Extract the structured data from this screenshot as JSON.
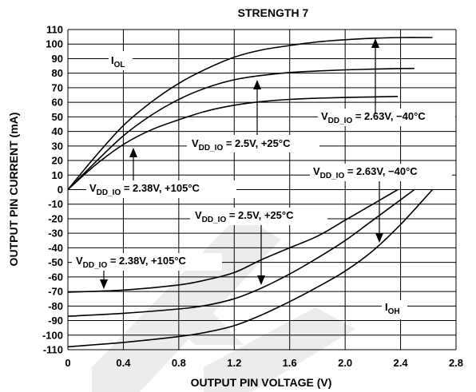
{
  "chart_data": {
    "type": "line",
    "title": "STRENGTH 7",
    "xlabel": "OUTPUT PIN VOLTAGE (V)",
    "ylabel": "OUTPUT PIN CURRENT (mA)",
    "xlim": [
      0,
      2.8
    ],
    "ylim": [
      -110,
      110
    ],
    "x_ticks": [
      0,
      0.4,
      0.8,
      1.2,
      1.6,
      2.0,
      2.4,
      2.8
    ],
    "x_tick_labels": [
      "0",
      "0.4",
      "0.8",
      "1.2",
      "1.6",
      "2.0",
      "2.4",
      "2.8"
    ],
    "y_ticks": [
      110,
      100,
      90,
      80,
      70,
      60,
      50,
      40,
      30,
      20,
      10,
      0,
      -10,
      -20,
      -30,
      -40,
      -50,
      -60,
      -70,
      -80,
      -90,
      -100,
      -110
    ],
    "y_tick_labels": [
      "110",
      "100",
      "90",
      "80",
      "70",
      "60",
      "50",
      "40",
      "30",
      "20",
      "10",
      "0",
      "-10",
      "-20",
      "-30",
      "-40",
      "-50",
      "-60",
      "-70",
      "-80",
      "-90",
      "-100",
      "-110"
    ],
    "grid": true,
    "series": [
      {
        "group": "IOL",
        "condition": "VDD_IO = 2.63V, −40°C",
        "x": [
          0,
          0.2,
          0.4,
          0.6,
          0.8,
          1.0,
          1.2,
          1.4,
          1.6,
          1.8,
          2.0,
          2.2,
          2.4,
          2.63
        ],
        "y": [
          0,
          23,
          44,
          60,
          73,
          83,
          91,
          96,
          99,
          101.5,
          103,
          104,
          104.5,
          104.5
        ]
      },
      {
        "group": "IOL",
        "condition": "VDD_IO = 2.5V, +25°C",
        "x": [
          0,
          0.2,
          0.4,
          0.6,
          0.8,
          1.0,
          1.2,
          1.4,
          1.6,
          1.8,
          2.0,
          2.2,
          2.4,
          2.5
        ],
        "y": [
          0,
          19,
          37,
          51,
          62,
          70,
          75.5,
          78.5,
          80.5,
          81.5,
          82.3,
          82.8,
          83.2,
          83.3
        ]
      },
      {
        "group": "IOL",
        "condition": "VDD_IO = 2.38V, +105°C",
        "x": [
          0,
          0.2,
          0.4,
          0.6,
          0.8,
          1.0,
          1.2,
          1.4,
          1.6,
          1.8,
          2.0,
          2.2,
          2.38
        ],
        "y": [
          0,
          17,
          31,
          41,
          48,
          54,
          58,
          60.5,
          62,
          62.8,
          63.3,
          63.7,
          64
        ]
      },
      {
        "group": "IOH",
        "condition": "VDD_IO = 2.63V, −40°C",
        "x": [
          0,
          0.4,
          0.8,
          1.0,
          1.2,
          1.4,
          1.6,
          1.8,
          2.0,
          2.2,
          2.4,
          2.63
        ],
        "y": [
          -108,
          -105,
          -101,
          -98,
          -93.5,
          -86,
          -77,
          -67,
          -56,
          -42,
          -24,
          0
        ]
      },
      {
        "group": "IOH",
        "condition": "VDD_IO = 2.5V, +25°C",
        "x": [
          0,
          0.4,
          0.8,
          1.0,
          1.2,
          1.4,
          1.6,
          1.8,
          2.0,
          2.2,
          2.5
        ],
        "y": [
          -87,
          -85,
          -82,
          -79.5,
          -75,
          -67.5,
          -58,
          -47,
          -35,
          -21,
          0
        ]
      },
      {
        "group": "IOH",
        "condition": "VDD_IO = 2.38V, +105°C",
        "x": [
          0,
          0.4,
          0.8,
          1.0,
          1.2,
          1.4,
          1.6,
          1.8,
          2.0,
          2.2,
          2.38
        ],
        "y": [
          -70.5,
          -69,
          -65.5,
          -62,
          -57,
          -48,
          -40,
          -32,
          -21,
          -10,
          0
        ]
      }
    ]
  },
  "annotations": {
    "iol": {
      "main": "I",
      "sub": "OL"
    },
    "ioh": {
      "main": "I",
      "sub": "OH"
    },
    "cond_1": {
      "v": "V",
      "sub": "DD_IO",
      "rest": " = 2.63V, −40°C"
    },
    "cond_2": {
      "v": "V",
      "sub": "DD_IO",
      "rest": " = 2.5V, +25°C"
    },
    "cond_3": {
      "v": "V",
      "sub": "DD_IO",
      "rest": " = 2.38V, +105°C"
    },
    "cond_4": {
      "v": "V",
      "sub": "DD_IO",
      "rest": " = 2.63V, −40°C"
    },
    "cond_5": {
      "v": "V",
      "sub": "DD_IO",
      "rest": " = 2.5V, +25°C"
    },
    "cond_6": {
      "v": "V",
      "sub": "DD_IO",
      "rest": " = 2.38V, +105°C"
    }
  }
}
